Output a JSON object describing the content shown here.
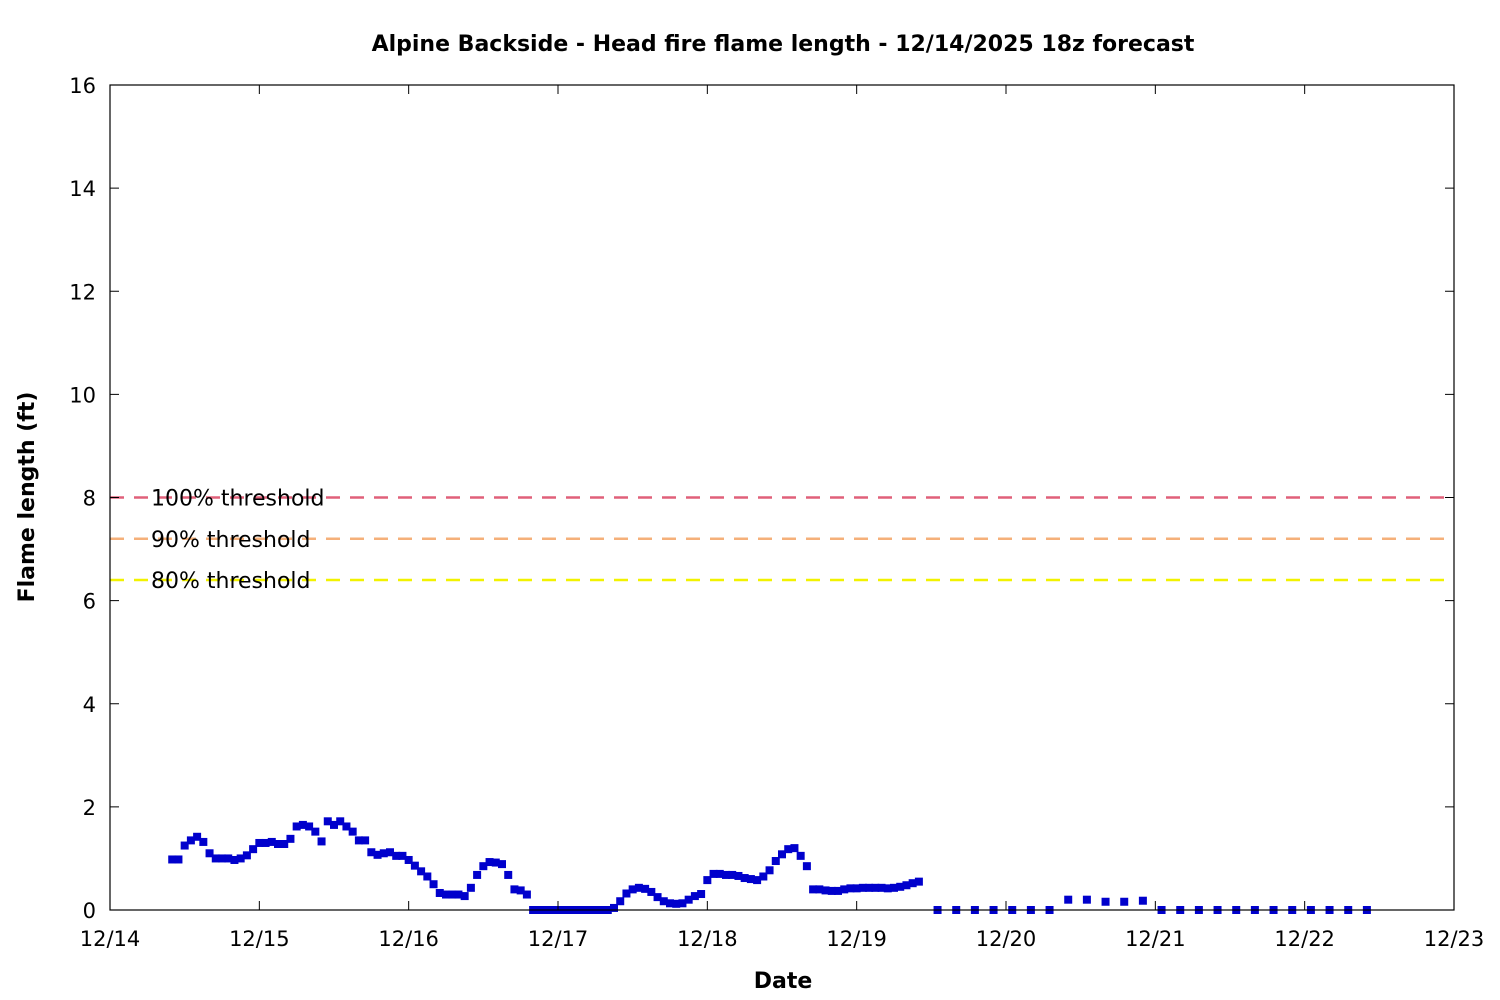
{
  "chart_data": {
    "type": "scatter",
    "title": "Alpine Backside - Head fire flame length - 12/14/2025 18z forecast",
    "xlabel": "Date",
    "ylabel": "Flame length (ft)",
    "x_start": "2025-12-14",
    "x_ticks": [
      "12/14",
      "12/15",
      "12/16",
      "12/17",
      "12/18",
      "12/19",
      "12/20",
      "12/21",
      "12/22",
      "12/23"
    ],
    "ylim": [
      0,
      16
    ],
    "y_ticks": [
      0,
      2,
      4,
      6,
      8,
      10,
      12,
      14,
      16
    ],
    "grid": false,
    "marker_color": "#0000cc",
    "thresholds": [
      {
        "label": "100% threshold",
        "value": 8.0,
        "color": "#e0607a"
      },
      {
        "label": "90% threshold",
        "value": 7.2,
        "color": "#f5b07a"
      },
      {
        "label": "80% threshold",
        "value": 6.4,
        "color": "#f2f200"
      }
    ],
    "series": [
      {
        "points": [
          [
            "2025-12-14 10:00",
            0.98
          ],
          [
            "2025-12-14 11:00",
            0.98
          ],
          [
            "2025-12-14 12:00",
            1.25
          ],
          [
            "2025-12-14 13:00",
            1.35
          ],
          [
            "2025-12-14 14:00",
            1.42
          ],
          [
            "2025-12-14 15:00",
            1.32
          ],
          [
            "2025-12-14 16:00",
            1.1
          ],
          [
            "2025-12-14 17:00",
            1.0
          ],
          [
            "2025-12-14 18:00",
            1.0
          ],
          [
            "2025-12-14 19:00",
            1.0
          ],
          [
            "2025-12-14 20:00",
            0.97
          ],
          [
            "2025-12-14 21:00",
            1.0
          ],
          [
            "2025-12-14 22:00",
            1.06
          ],
          [
            "2025-12-14 23:00",
            1.18
          ],
          [
            "2025-12-15 00:00",
            1.3
          ],
          [
            "2025-12-15 01:00",
            1.3
          ],
          [
            "2025-12-15 02:00",
            1.32
          ],
          [
            "2025-12-15 03:00",
            1.28
          ],
          [
            "2025-12-15 04:00",
            1.28
          ],
          [
            "2025-12-15 05:00",
            1.38
          ],
          [
            "2025-12-15 06:00",
            1.62
          ],
          [
            "2025-12-15 07:00",
            1.65
          ],
          [
            "2025-12-15 08:00",
            1.62
          ],
          [
            "2025-12-15 09:00",
            1.52
          ],
          [
            "2025-12-15 10:00",
            1.33
          ],
          [
            "2025-12-15 11:00",
            1.72
          ],
          [
            "2025-12-15 12:00",
            1.65
          ],
          [
            "2025-12-15 13:00",
            1.72
          ],
          [
            "2025-12-15 14:00",
            1.62
          ],
          [
            "2025-12-15 15:00",
            1.52
          ],
          [
            "2025-12-15 16:00",
            1.35
          ],
          [
            "2025-12-15 17:00",
            1.35
          ],
          [
            "2025-12-15 18:00",
            1.12
          ],
          [
            "2025-12-15 19:00",
            1.07
          ],
          [
            "2025-12-15 20:00",
            1.1
          ],
          [
            "2025-12-15 21:00",
            1.12
          ],
          [
            "2025-12-15 22:00",
            1.05
          ],
          [
            "2025-12-15 23:00",
            1.05
          ],
          [
            "2025-12-16 00:00",
            0.97
          ],
          [
            "2025-12-16 01:00",
            0.86
          ],
          [
            "2025-12-16 02:00",
            0.75
          ],
          [
            "2025-12-16 03:00",
            0.65
          ],
          [
            "2025-12-16 04:00",
            0.5
          ],
          [
            "2025-12-16 05:00",
            0.33
          ],
          [
            "2025-12-16 06:00",
            0.3
          ],
          [
            "2025-12-16 07:00",
            0.3
          ],
          [
            "2025-12-16 08:00",
            0.3
          ],
          [
            "2025-12-16 09:00",
            0.27
          ],
          [
            "2025-12-16 10:00",
            0.43
          ],
          [
            "2025-12-16 11:00",
            0.68
          ],
          [
            "2025-12-16 12:00",
            0.85
          ],
          [
            "2025-12-16 13:00",
            0.93
          ],
          [
            "2025-12-16 14:00",
            0.92
          ],
          [
            "2025-12-16 15:00",
            0.89
          ],
          [
            "2025-12-16 16:00",
            0.68
          ],
          [
            "2025-12-16 17:00",
            0.4
          ],
          [
            "2025-12-16 18:00",
            0.38
          ],
          [
            "2025-12-16 19:00",
            0.3
          ],
          [
            "2025-12-16 20:00",
            0.0
          ],
          [
            "2025-12-16 21:00",
            0.0
          ],
          [
            "2025-12-16 22:00",
            0.0
          ],
          [
            "2025-12-16 23:00",
            0.0
          ],
          [
            "2025-12-17 00:00",
            0.0
          ],
          [
            "2025-12-17 01:00",
            0.0
          ],
          [
            "2025-12-17 02:00",
            0.0
          ],
          [
            "2025-12-17 03:00",
            0.0
          ],
          [
            "2025-12-17 04:00",
            0.0
          ],
          [
            "2025-12-17 05:00",
            0.0
          ],
          [
            "2025-12-17 06:00",
            0.0
          ],
          [
            "2025-12-17 07:00",
            0.0
          ],
          [
            "2025-12-17 08:00",
            0.0
          ],
          [
            "2025-12-17 09:00",
            0.04
          ],
          [
            "2025-12-17 10:00",
            0.17
          ],
          [
            "2025-12-17 11:00",
            0.32
          ],
          [
            "2025-12-17 12:00",
            0.4
          ],
          [
            "2025-12-17 13:00",
            0.43
          ],
          [
            "2025-12-17 14:00",
            0.41
          ],
          [
            "2025-12-17 15:00",
            0.35
          ],
          [
            "2025-12-17 16:00",
            0.25
          ],
          [
            "2025-12-17 17:00",
            0.17
          ],
          [
            "2025-12-17 18:00",
            0.13
          ],
          [
            "2025-12-17 19:00",
            0.12
          ],
          [
            "2025-12-17 20:00",
            0.13
          ],
          [
            "2025-12-17 21:00",
            0.2
          ],
          [
            "2025-12-17 22:00",
            0.27
          ],
          [
            "2025-12-17 23:00",
            0.31
          ],
          [
            "2025-12-18 00:00",
            0.58
          ],
          [
            "2025-12-18 01:00",
            0.7
          ],
          [
            "2025-12-18 02:00",
            0.7
          ],
          [
            "2025-12-18 03:00",
            0.68
          ],
          [
            "2025-12-18 04:00",
            0.68
          ],
          [
            "2025-12-18 05:00",
            0.66
          ],
          [
            "2025-12-18 06:00",
            0.62
          ],
          [
            "2025-12-18 07:00",
            0.6
          ],
          [
            "2025-12-18 08:00",
            0.58
          ],
          [
            "2025-12-18 09:00",
            0.65
          ],
          [
            "2025-12-18 10:00",
            0.77
          ],
          [
            "2025-12-18 11:00",
            0.95
          ],
          [
            "2025-12-18 12:00",
            1.08
          ],
          [
            "2025-12-18 13:00",
            1.18
          ],
          [
            "2025-12-18 14:00",
            1.2
          ],
          [
            "2025-12-18 15:00",
            1.05
          ],
          [
            "2025-12-18 16:00",
            0.85
          ],
          [
            "2025-12-18 17:00",
            0.4
          ],
          [
            "2025-12-18 18:00",
            0.4
          ],
          [
            "2025-12-18 19:00",
            0.38
          ],
          [
            "2025-12-18 20:00",
            0.37
          ],
          [
            "2025-12-18 21:00",
            0.37
          ],
          [
            "2025-12-18 22:00",
            0.4
          ],
          [
            "2025-12-18 23:00",
            0.42
          ],
          [
            "2025-12-19 00:00",
            0.42
          ],
          [
            "2025-12-19 01:00",
            0.43
          ],
          [
            "2025-12-19 02:00",
            0.43
          ],
          [
            "2025-12-19 03:00",
            0.43
          ],
          [
            "2025-12-19 04:00",
            0.43
          ],
          [
            "2025-12-19 05:00",
            0.42
          ],
          [
            "2025-12-19 06:00",
            0.43
          ],
          [
            "2025-12-19 07:00",
            0.45
          ],
          [
            "2025-12-19 08:00",
            0.48
          ],
          [
            "2025-12-19 09:00",
            0.52
          ],
          [
            "2025-12-19 10:00",
            0.55
          ],
          [
            "2025-12-19 13:00",
            0.0
          ],
          [
            "2025-12-19 16:00",
            0.0
          ],
          [
            "2025-12-19 19:00",
            0.0
          ],
          [
            "2025-12-19 22:00",
            0.0
          ],
          [
            "2025-12-20 01:00",
            0.0
          ],
          [
            "2025-12-20 04:00",
            0.0
          ],
          [
            "2025-12-20 07:00",
            0.0
          ],
          [
            "2025-12-20 10:00",
            0.2
          ],
          [
            "2025-12-20 13:00",
            0.2
          ],
          [
            "2025-12-20 16:00",
            0.16
          ],
          [
            "2025-12-20 19:00",
            0.16
          ],
          [
            "2025-12-20 22:00",
            0.18
          ],
          [
            "2025-12-21 01:00",
            0.0
          ],
          [
            "2025-12-21 04:00",
            0.0
          ],
          [
            "2025-12-21 07:00",
            0.0
          ],
          [
            "2025-12-21 10:00",
            0.0
          ],
          [
            "2025-12-21 13:00",
            0.0
          ],
          [
            "2025-12-21 16:00",
            0.0
          ],
          [
            "2025-12-21 19:00",
            0.0
          ],
          [
            "2025-12-21 22:00",
            0.0
          ],
          [
            "2025-12-22 01:00",
            0.0
          ],
          [
            "2025-12-22 04:00",
            0.0
          ],
          [
            "2025-12-22 07:00",
            0.0
          ],
          [
            "2025-12-22 10:00",
            0.0
          ]
        ]
      }
    ]
  }
}
